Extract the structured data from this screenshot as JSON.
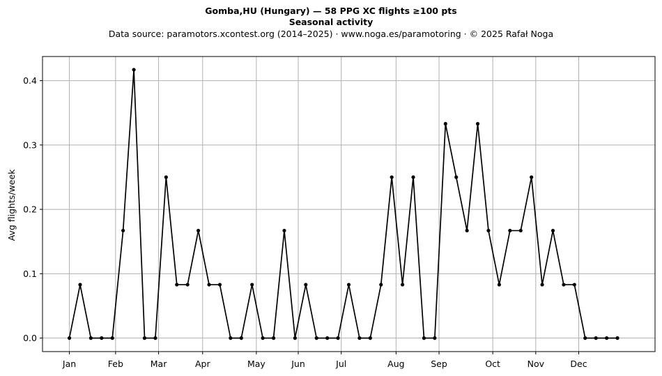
{
  "chart_data": {
    "type": "line",
    "title": "Gomba,HU (Hungary)  —  58 PPG XC flights ≥100 pts",
    "subtitle": "Seasonal activity",
    "source": "Data source: paramotors.xcontest.org (2014–2025)  ·  www.noga.es/paramotoring  ·  © 2025 Rafał Noga",
    "xlabel": "",
    "ylabel": "Avg flights/week",
    "x_unit": "week of year",
    "xlim": [
      -2.5,
      54.5
    ],
    "ylim": [
      -0.021,
      0.4375
    ],
    "grid": true,
    "legend": "none",
    "line_color": "#000000",
    "grid_color": "#b0b0b0",
    "y_ticks": [
      0.0,
      0.1,
      0.2,
      0.3,
      0.4
    ],
    "y_tick_labels": [
      "0.0",
      "0.1",
      "0.2",
      "0.3",
      "0.4"
    ],
    "x_ticks": [
      {
        "label": "Jan",
        "week": 0
      },
      {
        "label": "Feb",
        "week": 4.3
      },
      {
        "label": "Mar",
        "week": 8.3
      },
      {
        "label": "Apr",
        "week": 12.4
      },
      {
        "label": "May",
        "week": 17.4
      },
      {
        "label": "Jun",
        "week": 21.3
      },
      {
        "label": "Jul",
        "week": 25.3
      },
      {
        "label": "Aug",
        "week": 30.4
      },
      {
        "label": "Sep",
        "week": 34.4
      },
      {
        "label": "Oct",
        "week": 39.4
      },
      {
        "label": "Nov",
        "week": 43.4
      },
      {
        "label": "Dec",
        "week": 47.4
      }
    ],
    "x": [
      0,
      1,
      2,
      3,
      4,
      5,
      6,
      7,
      8,
      9,
      10,
      11,
      12,
      13,
      14,
      15,
      16,
      17,
      18,
      19,
      20,
      21,
      22,
      23,
      24,
      25,
      26,
      27,
      28,
      29,
      30,
      31,
      32,
      33,
      34,
      35,
      36,
      37,
      38,
      39,
      40,
      41,
      42,
      43,
      44,
      45,
      46,
      47,
      48,
      49,
      50,
      51
    ],
    "values": [
      0.0,
      0.083,
      0.0,
      0.0,
      0.0,
      0.167,
      0.417,
      0.0,
      0.0,
      0.25,
      0.083,
      0.083,
      0.167,
      0.083,
      0.083,
      0.0,
      0.0,
      0.083,
      0.0,
      0.0,
      0.167,
      0.0,
      0.083,
      0.0,
      0.0,
      0.0,
      0.083,
      0.0,
      0.0,
      0.083,
      0.25,
      0.083,
      0.25,
      0.0,
      0.0,
      0.333,
      0.25,
      0.167,
      0.333,
      0.167,
      0.083,
      0.167,
      0.167,
      0.25,
      0.083,
      0.167,
      0.083,
      0.083,
      0.0,
      0.0,
      0.0,
      0.0
    ]
  }
}
